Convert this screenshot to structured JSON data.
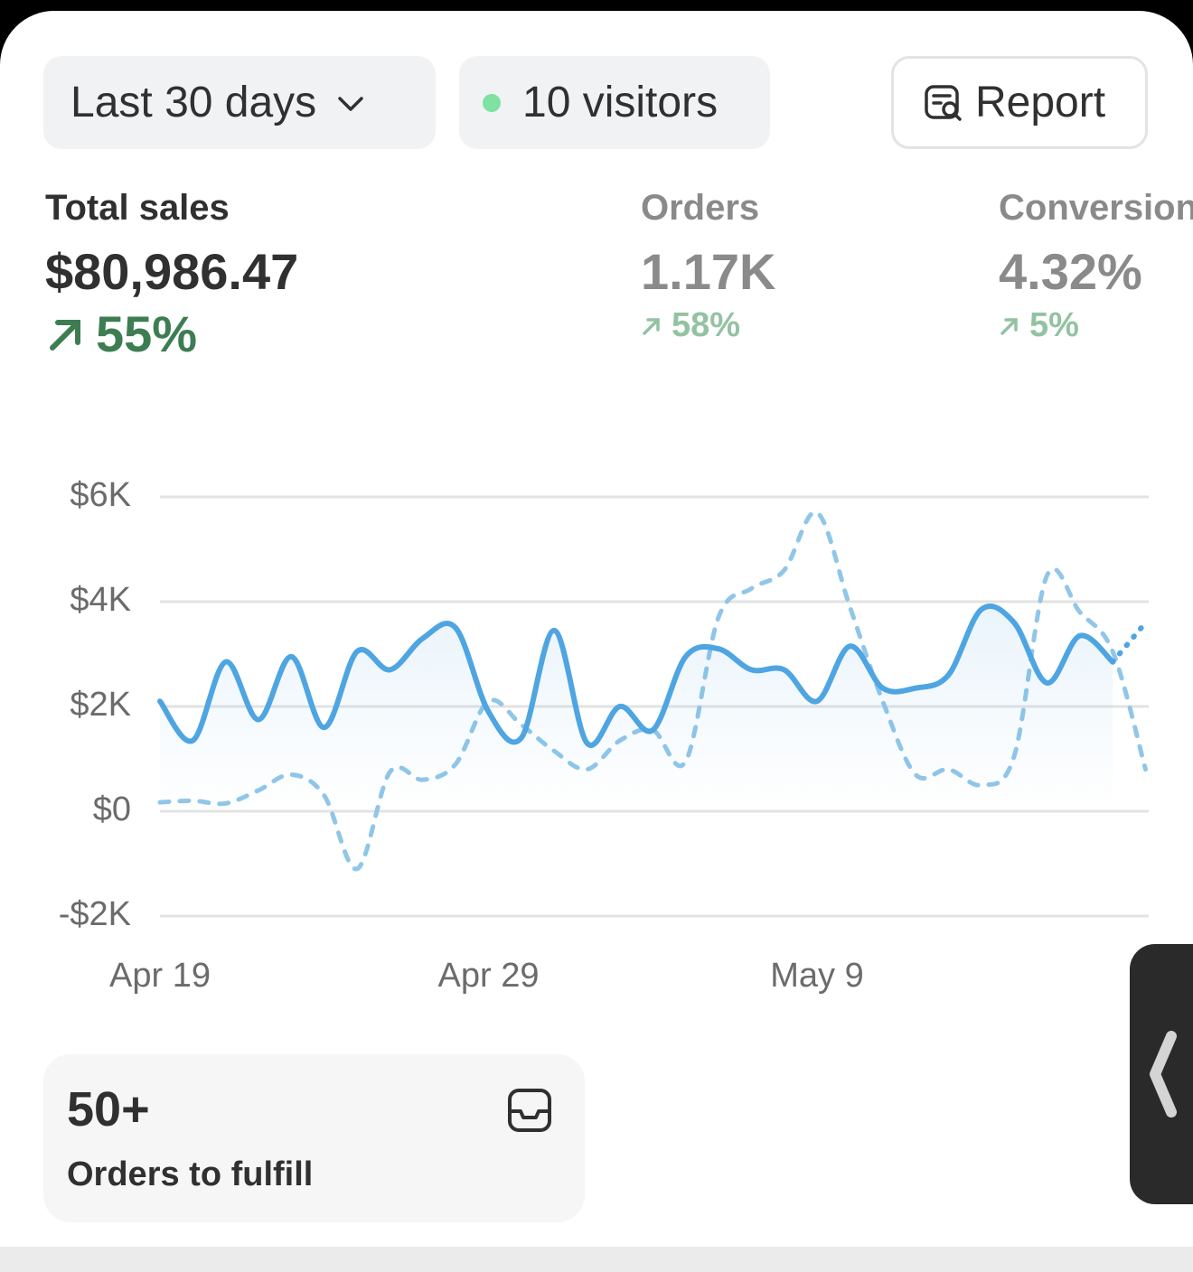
{
  "toolbar": {
    "date_range": "Last 30 days",
    "visitors": "10 visitors",
    "report": "Report"
  },
  "metrics": [
    {
      "label": "Total sales",
      "value": "$80,986.47",
      "change": "55%"
    },
    {
      "label": "Orders",
      "value": "1.17K",
      "change": "58%"
    },
    {
      "label": "Conversion rate",
      "value": "4.32%",
      "change": "5%"
    }
  ],
  "chart_data": {
    "type": "line",
    "categories": [
      "Apr 19",
      null,
      null,
      null,
      null,
      null,
      null,
      null,
      null,
      null,
      "Apr 29",
      null,
      null,
      null,
      null,
      null,
      null,
      null,
      null,
      null,
      "May 9",
      null,
      null,
      null,
      null,
      null,
      null,
      null,
      null,
      null,
      null
    ],
    "ylim": [
      -2000,
      6000
    ],
    "yticks": [
      {
        "value": 6000,
        "label": "$6K"
      },
      {
        "value": 4000,
        "label": "$4K"
      },
      {
        "value": 2000,
        "label": "$2K"
      },
      {
        "value": 0,
        "label": "$0"
      },
      {
        "value": -2000,
        "label": "-$2K"
      }
    ],
    "grid": true,
    "series": [
      {
        "color": "#4ea5e1",
        "style": "solid",
        "values": [
          2100,
          1350,
          2850,
          1750,
          2950,
          1600,
          3050,
          2700,
          3300,
          3500,
          1900,
          1400,
          3450,
          1300,
          2000,
          1550,
          2950,
          3100,
          2700,
          2700,
          2100,
          3150,
          2350,
          2350,
          2600,
          3850,
          3600,
          2450,
          3350,
          2850,
          3600
        ]
      },
      {
        "color": "#90c6e8",
        "style": "dashed",
        "values": [
          170,
          200,
          150,
          400,
          700,
          300,
          -1100,
          750,
          600,
          900,
          2100,
          1650,
          1150,
          800,
          1350,
          1550,
          950,
          3700,
          4250,
          4600,
          5700,
          3900,
          2100,
          700,
          800,
          500,
          1050,
          4500,
          3800,
          3050,
          800
        ]
      }
    ]
  },
  "fulfill": {
    "count": "50+",
    "label": "Orders to fulfill"
  }
}
